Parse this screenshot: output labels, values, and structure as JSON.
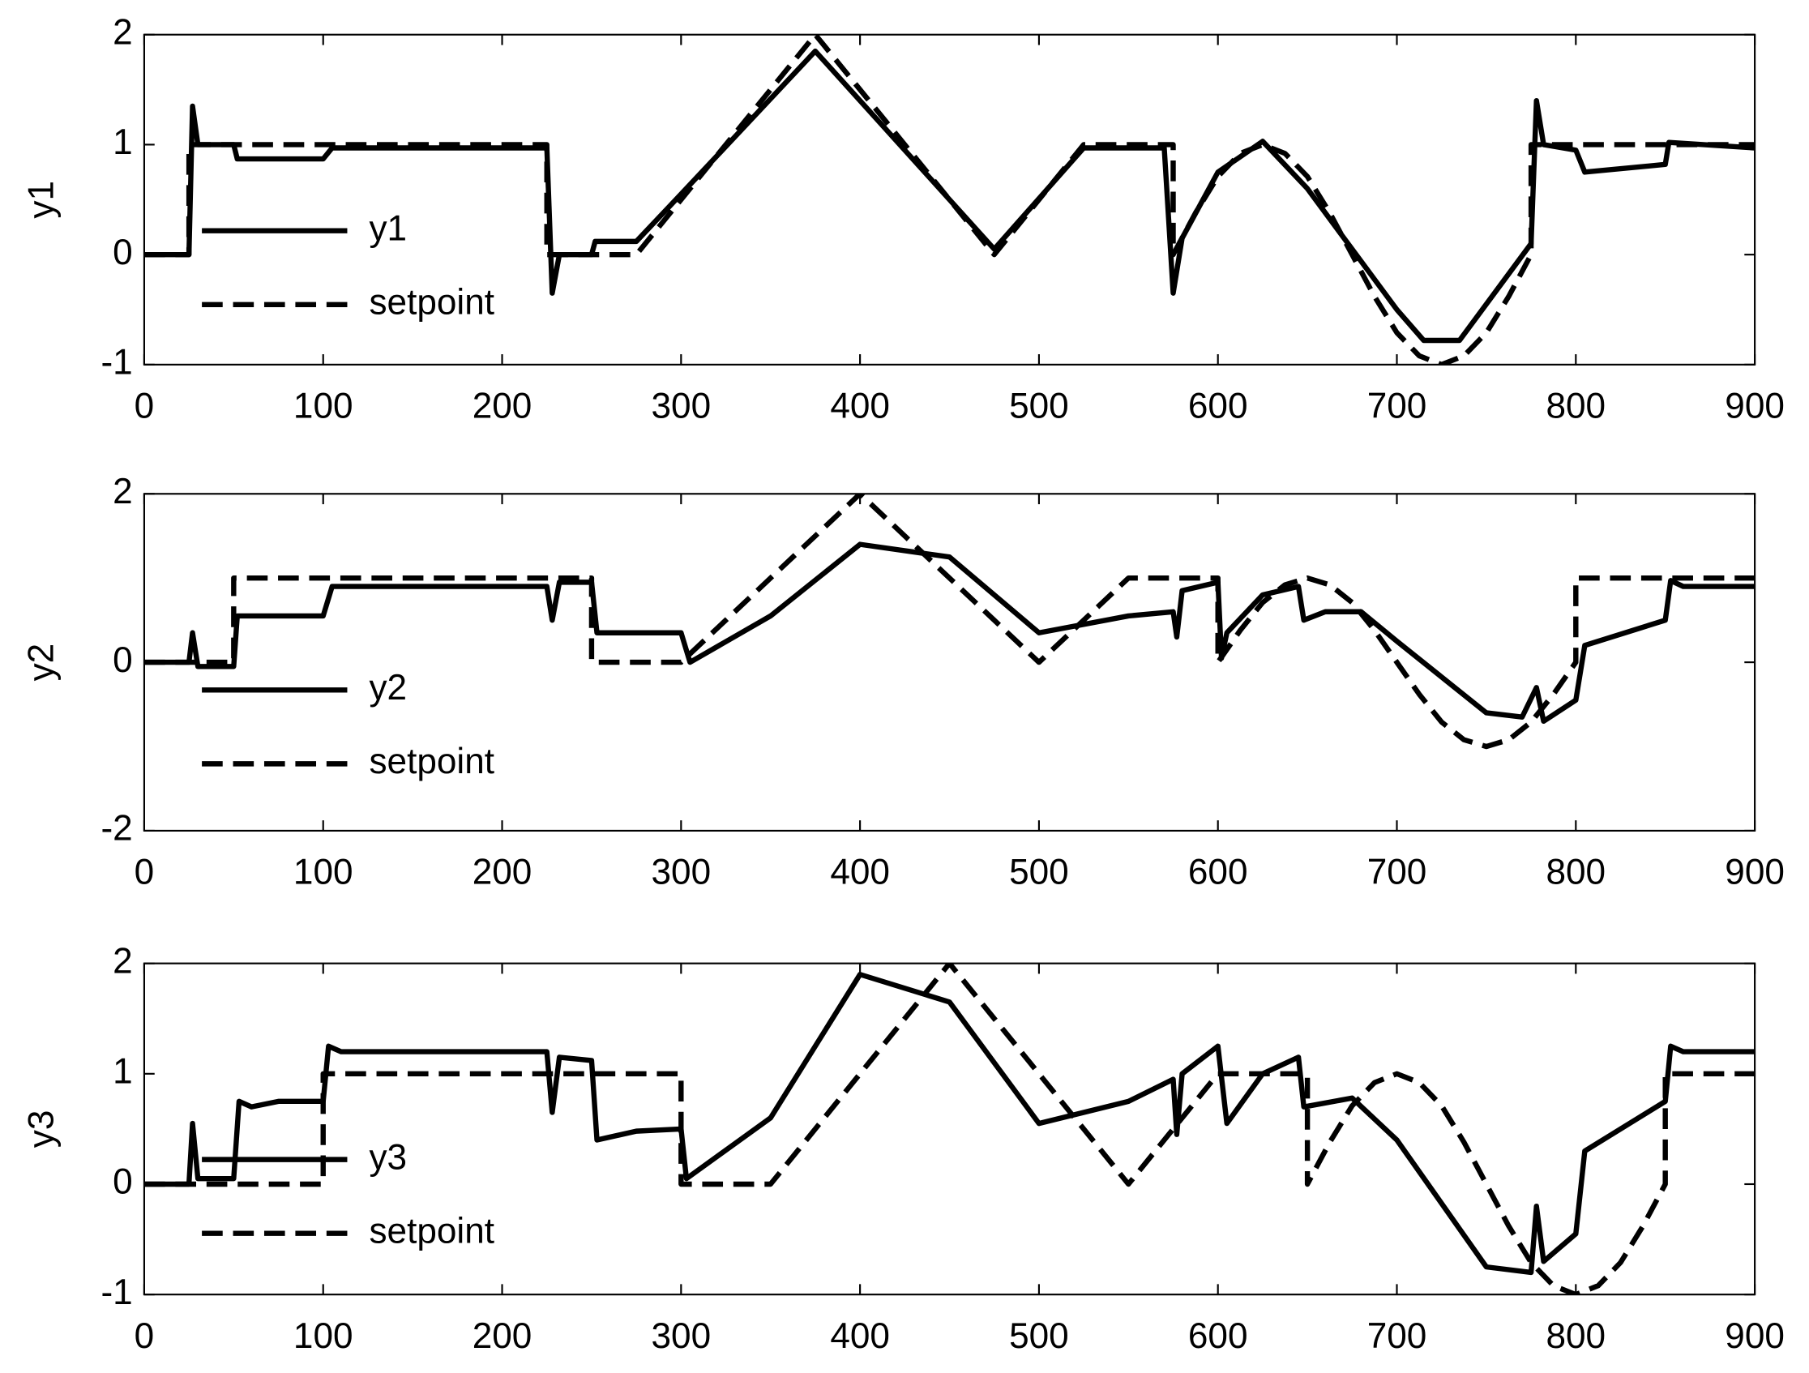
{
  "chart_data": [
    {
      "type": "line",
      "ylabel": "y1",
      "xlim": [
        0,
        900
      ],
      "xticks": [
        0,
        100,
        200,
        300,
        400,
        500,
        600,
        700,
        800,
        900
      ],
      "ylim": [
        -1,
        2
      ],
      "yticks": [
        -1,
        0,
        1,
        2
      ],
      "legend": "left",
      "series": [
        {
          "name": "y1",
          "color": "#000000",
          "style": "solid",
          "x": [
            0,
            25,
            27,
            30,
            50,
            52,
            100,
            105,
            225,
            228,
            232,
            250,
            252,
            275,
            300,
            375,
            475,
            525,
            570,
            575,
            580,
            600,
            625,
            650,
            675,
            700,
            715,
            735,
            775,
            778,
            782,
            800,
            805,
            850,
            852,
            900
          ],
          "values": [
            0,
            0,
            1.35,
            1,
            1,
            0.87,
            0.87,
            0.97,
            0.97,
            -0.35,
            0,
            0,
            0.12,
            0.12,
            0.55,
            1.85,
            0.05,
            0.97,
            0.97,
            -0.35,
            0.15,
            0.75,
            1.03,
            0.6,
            0.05,
            -0.5,
            -0.78,
            -0.78,
            0.1,
            1.4,
            1,
            0.95,
            0.75,
            0.82,
            1.02,
            0.97
          ]
        },
        {
          "name": "setpoint",
          "color": "#000000",
          "style": "dashed",
          "x": [
            0,
            25,
            25,
            225,
            225,
            275,
            375,
            475,
            525,
            575,
            575,
            587.5,
            600,
            612.5,
            625,
            637.5,
            650,
            662.5,
            675,
            687.5,
            700,
            712.5,
            725,
            737.5,
            750,
            762.5,
            775,
            775,
            900
          ],
          "values": [
            0,
            0,
            1,
            1,
            0,
            0,
            2,
            0,
            1,
            1,
            0,
            0.38,
            0.71,
            0.92,
            1,
            0.92,
            0.71,
            0.38,
            0,
            -0.38,
            -0.71,
            -0.92,
            -1,
            -0.92,
            -0.71,
            -0.38,
            0,
            1,
            1
          ]
        }
      ]
    },
    {
      "type": "line",
      "ylabel": "y2",
      "xlim": [
        0,
        900
      ],
      "xticks": [
        0,
        100,
        200,
        300,
        400,
        500,
        600,
        700,
        800,
        900
      ],
      "ylim": [
        -2,
        2
      ],
      "yticks": [
        -2,
        0,
        2
      ],
      "legend": "left",
      "series": [
        {
          "name": "y2",
          "color": "#000000",
          "style": "solid",
          "x": [
            0,
            25,
            27,
            30,
            50,
            52,
            100,
            105,
            225,
            228,
            232,
            250,
            253,
            300,
            305,
            350,
            400,
            450,
            500,
            550,
            575,
            577,
            580,
            600,
            602,
            605,
            625,
            645,
            648,
            660,
            680,
            700,
            750,
            770,
            778,
            782,
            800,
            805,
            850,
            853,
            860,
            900
          ],
          "values": [
            0,
            0,
            0.35,
            -0.05,
            -0.05,
            0.55,
            0.55,
            0.9,
            0.9,
            0.5,
            0.95,
            0.95,
            0.35,
            0.35,
            0,
            0.55,
            1.4,
            1.25,
            0.35,
            0.55,
            0.6,
            0.3,
            0.85,
            0.95,
            0.05,
            0.35,
            0.8,
            0.9,
            0.5,
            0.6,
            0.6,
            0.25,
            -0.6,
            -0.65,
            -0.3,
            -0.7,
            -0.45,
            0.2,
            0.5,
            0.97,
            0.9,
            0.9
          ]
        },
        {
          "name": "setpoint",
          "color": "#000000",
          "style": "dashed",
          "x": [
            0,
            50,
            50,
            250,
            250,
            300,
            400,
            500,
            550,
            600,
            600,
            612.5,
            625,
            637.5,
            650,
            662.5,
            675,
            687.5,
            700,
            712.5,
            725,
            737.5,
            750,
            762.5,
            775,
            787.5,
            800,
            800,
            900
          ],
          "values": [
            0,
            0,
            1,
            1,
            0,
            0,
            2,
            0,
            1,
            1,
            0,
            0.38,
            0.71,
            0.92,
            1,
            0.92,
            0.71,
            0.38,
            0,
            -0.38,
            -0.71,
            -0.92,
            -1,
            -0.92,
            -0.71,
            -0.38,
            0,
            1,
            1
          ]
        }
      ]
    },
    {
      "type": "line",
      "ylabel": "y3",
      "xlim": [
        0,
        900
      ],
      "xticks": [
        0,
        100,
        200,
        300,
        400,
        500,
        600,
        700,
        800,
        900
      ],
      "ylim": [
        -1,
        2
      ],
      "yticks": [
        -1,
        0,
        1,
        2
      ],
      "legend": "left",
      "series": [
        {
          "name": "y3",
          "color": "#000000",
          "style": "solid",
          "x": [
            0,
            25,
            27,
            30,
            50,
            53,
            60,
            75,
            100,
            103,
            110,
            225,
            228,
            232,
            250,
            253,
            275,
            300,
            303,
            350,
            400,
            450,
            500,
            550,
            575,
            577,
            580,
            600,
            605,
            625,
            645,
            648,
            675,
            700,
            750,
            775,
            778,
            782,
            800,
            805,
            850,
            853,
            860,
            900
          ],
          "values": [
            0,
            0,
            0.55,
            0.05,
            0.05,
            0.75,
            0.7,
            0.75,
            0.75,
            1.25,
            1.2,
            1.2,
            0.65,
            1.15,
            1.12,
            0.4,
            0.48,
            0.5,
            0.05,
            0.6,
            1.9,
            1.65,
            0.55,
            0.75,
            0.95,
            0.45,
            1,
            1.25,
            0.55,
            1,
            1.15,
            0.7,
            0.78,
            0.4,
            -0.75,
            -0.8,
            -0.2,
            -0.7,
            -0.45,
            0.3,
            0.75,
            1.25,
            1.2,
            1.2
          ]
        },
        {
          "name": "setpoint",
          "color": "#000000",
          "style": "dashed",
          "x": [
            0,
            100,
            100,
            300,
            300,
            350,
            450,
            550,
            600,
            650,
            650,
            662.5,
            675,
            687.5,
            700,
            712.5,
            725,
            737.5,
            750,
            762.5,
            775,
            787.5,
            800,
            812.5,
            825,
            837.5,
            850,
            850,
            900
          ],
          "values": [
            0,
            0,
            1,
            1,
            0,
            0,
            2,
            0,
            1,
            1,
            0,
            0.38,
            0.71,
            0.92,
            1,
            0.92,
            0.71,
            0.38,
            0,
            -0.38,
            -0.71,
            -0.92,
            -1,
            -0.92,
            -0.71,
            -0.38,
            0,
            1,
            1
          ]
        }
      ]
    }
  ]
}
